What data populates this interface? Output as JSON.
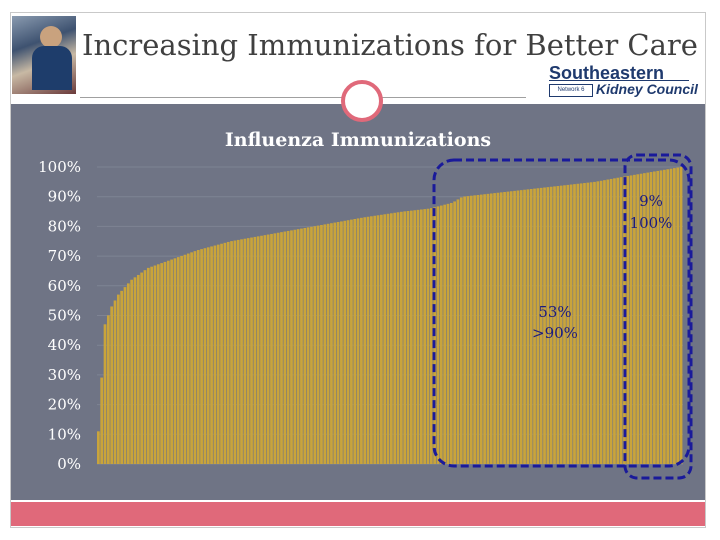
{
  "slide": {
    "title": "Increasing Immunizations for Better Care",
    "logo_line1": "Southeastern",
    "logo_line2": "Kidney Council",
    "logo_network": "Network 6"
  },
  "colors": {
    "accent": "#e0697a",
    "panel": "#6f7485",
    "bar": "#c9a43b",
    "highlight": "#1a1a9a"
  },
  "chart_data": {
    "type": "bar",
    "title": "Influenza Immunizations",
    "xlabel": "",
    "ylabel": "",
    "ylim": [
      0,
      100
    ],
    "y_ticks": [
      "100%",
      "90%",
      "80%",
      "70%",
      "60%",
      "50%",
      "40%",
      "30%",
      "20%",
      "10%",
      "0%"
    ],
    "sorted_facility_rates": {
      "count": 176,
      "curve_points": [
        [
          0,
          11
        ],
        [
          2,
          47
        ],
        [
          4,
          53
        ],
        [
          6,
          57
        ],
        [
          10,
          62
        ],
        [
          15,
          66
        ],
        [
          20,
          68
        ],
        [
          30,
          72
        ],
        [
          40,
          75
        ],
        [
          50,
          77
        ],
        [
          60,
          79
        ],
        [
          70,
          81
        ],
        [
          80,
          83
        ],
        [
          92,
          85
        ],
        [
          100,
          86
        ],
        [
          107,
          88
        ],
        [
          110,
          90
        ],
        [
          118,
          91
        ],
        [
          126,
          92
        ],
        [
          134,
          93
        ],
        [
          142,
          94
        ],
        [
          150,
          95
        ],
        [
          155,
          96
        ],
        [
          160,
          97
        ],
        [
          176,
          100
        ]
      ]
    },
    "annotations": [
      {
        "label_pct": "53%",
        "label_cond": ">90%"
      },
      {
        "label_pct": "9%",
        "label_cond": "100%"
      }
    ]
  }
}
